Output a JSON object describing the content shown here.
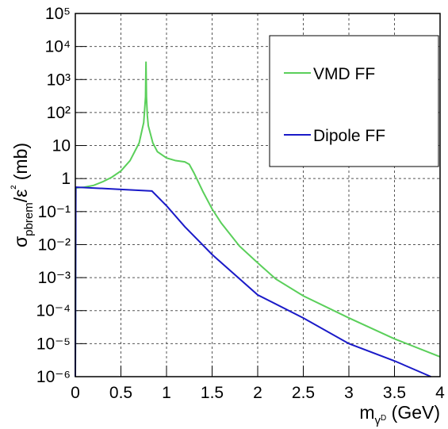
{
  "chart_data": {
    "type": "line",
    "log_y": true,
    "grid": true,
    "legend_position": "upper right",
    "xlabel": "mγD (GeV)",
    "ylabel": "σpbrem/ε² (mb)",
    "xlim": [
      0,
      4
    ],
    "xticks": [
      0,
      0.5,
      1,
      1.5,
      2,
      2.5,
      3,
      3.5,
      4
    ],
    "ylim": [
      1e-06,
      100000
    ],
    "yticks": [
      {
        "value": 1e-06,
        "label": "10⁻⁶"
      },
      {
        "value": 1e-05,
        "label": "10⁻⁵"
      },
      {
        "value": 0.0001,
        "label": "10⁻⁴"
      },
      {
        "value": 0.001,
        "label": "10⁻³"
      },
      {
        "value": 0.01,
        "label": "10⁻²"
      },
      {
        "value": 0.1,
        "label": "10⁻¹"
      },
      1,
      10,
      {
        "value": 100,
        "label": "10²"
      },
      {
        "value": 1000,
        "label": "10³"
      },
      {
        "value": 10000,
        "label": "10⁴"
      },
      {
        "value": 100000,
        "label": "10⁵"
      }
    ],
    "series": [
      {
        "name": "VMD FF",
        "color": "#5acf5a",
        "x": [
          0,
          0.005,
          0.1,
          0.2,
          0.3,
          0.4,
          0.5,
          0.6,
          0.7,
          0.75,
          0.77,
          0.775,
          0.78,
          0.79,
          0.8,
          0.85,
          0.9,
          1.0,
          1.1,
          1.2,
          1.25,
          1.3,
          1.4,
          1.5,
          1.6,
          1.8,
          2.0,
          2.2,
          2.5,
          3.0,
          3.5,
          4.0
        ],
        "values": [
          1e-06,
          0.52,
          0.55,
          0.62,
          0.8,
          1.1,
          1.7,
          3.5,
          12,
          50,
          300,
          3500,
          300,
          80,
          40,
          12,
          6.5,
          4.2,
          3.5,
          3.2,
          2.7,
          1.5,
          0.4,
          0.12,
          0.045,
          0.009,
          0.0028,
          0.0009,
          0.00028,
          6e-05,
          1.4e-05,
          4e-06
        ]
      },
      {
        "name": "Dipole FF",
        "color": "#1a1ac8",
        "x": [
          0,
          0.005,
          0.5,
          0.84,
          1.0,
          1.2,
          1.5,
          2.0,
          2.5,
          3.0,
          3.5,
          3.9
        ],
        "values": [
          1e-06,
          0.55,
          0.47,
          0.42,
          0.15,
          0.035,
          0.005,
          0.0003,
          6e-05,
          1e-05,
          3e-06,
          1e-06
        ]
      }
    ]
  }
}
